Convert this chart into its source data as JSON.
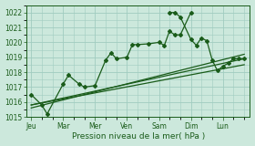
{
  "xlabel": "Pression niveau de la mer( hPa )",
  "ylim": [
    1015,
    1022.5
  ],
  "yticks": [
    1015,
    1016,
    1017,
    1018,
    1019,
    1020,
    1021,
    1022
  ],
  "bg_color": "#cce8dc",
  "grid_color": "#a0ccc0",
  "line_color": "#1a5c1a",
  "days": [
    "Jeu",
    "Mar",
    "Mer",
    "Ven",
    "Sam",
    "Dim",
    "Lun"
  ],
  "day_positions": [
    0.0,
    1.0,
    2.0,
    3.0,
    4.0,
    5.0,
    6.0
  ],
  "xlim": [
    -0.15,
    6.85
  ],
  "series1_x": [
    0.0,
    0.33,
    0.5,
    1.0,
    1.17,
    1.5,
    1.67,
    2.0,
    2.33,
    2.5,
    2.67,
    3.0,
    3.17,
    3.33,
    3.67,
    4.0,
    4.17,
    4.33,
    4.5,
    4.67,
    5.0
  ],
  "series1_y": [
    1016.5,
    1015.8,
    1015.2,
    1017.2,
    1017.8,
    1017.2,
    1017.0,
    1017.1,
    1018.8,
    1019.3,
    1018.9,
    1019.0,
    1019.85,
    1019.85,
    1019.9,
    1020.0,
    1019.8,
    1020.75,
    1020.5,
    1020.5,
    1022.0
  ],
  "series2_x": [
    4.33,
    4.5,
    4.67,
    5.0,
    5.17,
    5.33,
    5.5,
    5.67,
    5.83,
    6.0,
    6.17,
    6.33,
    6.5,
    6.67
  ],
  "series2_y": [
    1022.0,
    1022.0,
    1021.7,
    1020.2,
    1019.8,
    1020.3,
    1020.1,
    1018.8,
    1018.1,
    1018.4,
    1018.6,
    1018.9,
    1018.9,
    1018.9
  ],
  "trend1_x": [
    0.0,
    6.67
  ],
  "trend1_y": [
    1015.8,
    1018.5
  ],
  "trend2_x": [
    0.0,
    6.67
  ],
  "trend2_y": [
    1015.8,
    1018.9
  ],
  "trend3_x": [
    0.0,
    6.67
  ],
  "trend3_y": [
    1015.6,
    1019.2
  ]
}
